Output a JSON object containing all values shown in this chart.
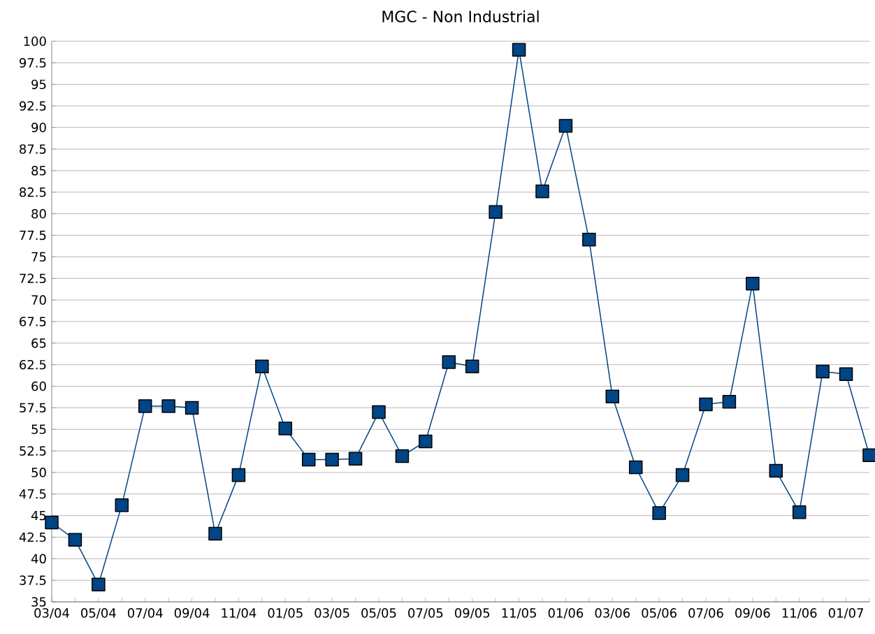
{
  "chart_data": {
    "type": "line",
    "title": "MGC - Non Industrial",
    "categories": [
      "03/04",
      null,
      "05/04",
      null,
      "07/04",
      null,
      "09/04",
      null,
      "11/04",
      null,
      "01/05",
      null,
      "03/05",
      null,
      "05/05",
      null,
      "07/05",
      null,
      "09/05",
      null,
      "11/05",
      null,
      "01/06",
      null,
      "03/06",
      null,
      "05/06",
      null,
      "07/06",
      null,
      "09/06",
      null,
      "11/06",
      null,
      "01/07",
      null
    ],
    "series": [
      {
        "color": "#004586",
        "values": [
          44.2,
          42.2,
          37.0,
          46.2,
          57.7,
          57.7,
          57.5,
          42.9,
          49.7,
          62.3,
          55.1,
          51.5,
          51.5,
          51.6,
          57.0,
          51.9,
          53.6,
          62.8,
          62.3,
          80.2,
          99.0,
          82.6,
          90.2,
          77.0,
          58.8,
          50.6,
          45.3,
          49.7,
          57.9,
          58.2,
          71.9,
          50.2,
          45.4,
          61.7,
          61.4,
          52.0
        ]
      }
    ],
    "ylim": [
      35,
      100
    ],
    "yticks": [
      35,
      37.5,
      40,
      42.5,
      45,
      47.5,
      50,
      52.5,
      55,
      57.5,
      60,
      62.5,
      65,
      67.5,
      70,
      72.5,
      75,
      77.5,
      80,
      82.5,
      85,
      87.5,
      90,
      92.5,
      95,
      97.5,
      100
    ],
    "grid": "y",
    "marker": "square",
    "line_style": "solid"
  }
}
